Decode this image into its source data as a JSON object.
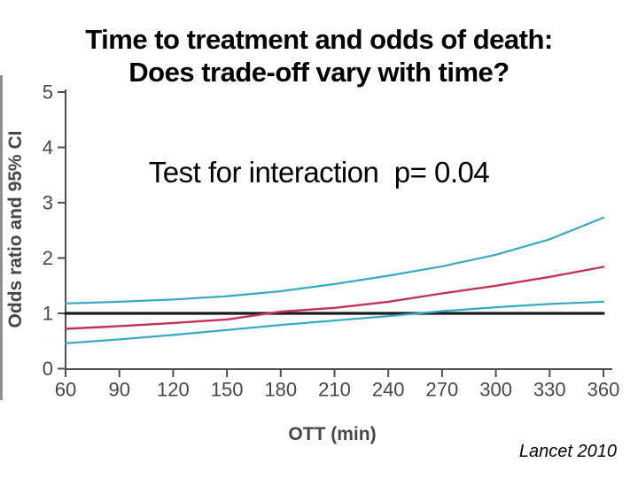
{
  "slide": {
    "title_line1": "Time to treatment and odds of death:",
    "title_line2": "Does trade-off vary with time?",
    "annotation": "Test for interaction  p= 0.04",
    "citation": "Lancet 2010"
  },
  "chart_data": {
    "type": "line",
    "title": "",
    "xlabel": "OTT (min)",
    "ylabel": "Odds ratio and 95% CI",
    "xlim": [
      60,
      360
    ],
    "ylim": [
      0,
      5
    ],
    "x_ticks": [
      60,
      90,
      120,
      150,
      180,
      210,
      240,
      270,
      300,
      330,
      360
    ],
    "y_ticks": [
      0,
      1,
      2,
      3,
      4,
      5
    ],
    "grid": false,
    "legend": "none",
    "x": [
      60,
      90,
      120,
      150,
      180,
      210,
      240,
      270,
      300,
      330,
      360
    ],
    "series": [
      {
        "name": "or-reference-line",
        "label": "OR = 1 reference",
        "color": "#1b1b1d",
        "width": 3.2,
        "values": [
          1,
          1,
          1,
          1,
          1,
          1,
          1,
          1,
          1,
          1,
          1
        ]
      },
      {
        "name": "ci-upper-curve",
        "label": "95% CI upper",
        "color": "#38a9c5",
        "width": 2.2,
        "values": [
          1.18,
          1.21,
          1.25,
          1.31,
          1.4,
          1.53,
          1.68,
          1.85,
          2.06,
          2.34,
          2.73
        ]
      },
      {
        "name": "ci-lower-curve",
        "label": "95% CI lower",
        "color": "#38a9c5",
        "width": 2.2,
        "values": [
          0.46,
          0.53,
          0.61,
          0.7,
          0.79,
          0.87,
          0.95,
          1.04,
          1.11,
          1.17,
          1.21
        ]
      },
      {
        "name": "odds-ratio-curve",
        "label": "Odds ratio of death",
        "color": "#c23354",
        "width": 2.4,
        "values": [
          0.72,
          0.77,
          0.825,
          0.89,
          1.03,
          1.1,
          1.21,
          1.36,
          1.5,
          1.66,
          1.84
        ]
      }
    ],
    "annotations": [
      "Test for interaction  p= 0.04"
    ],
    "axis_color": "#4f4f4f",
    "label_color": "#474747"
  }
}
